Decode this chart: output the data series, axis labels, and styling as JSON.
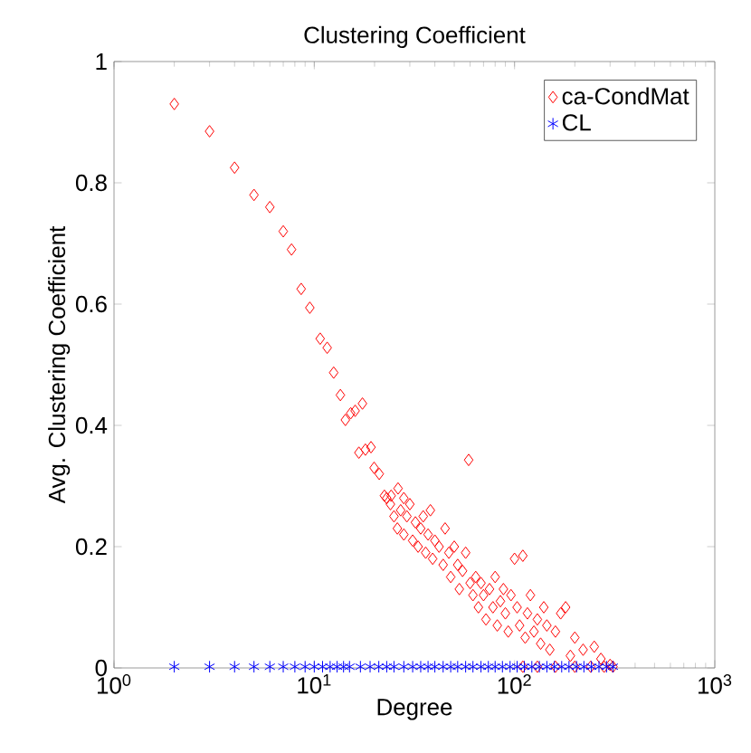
{
  "chart_data": {
    "type": "scatter",
    "title": "Clustering Coefficient",
    "xlabel": "Degree",
    "ylabel": "Avg. Clustering Coefficient",
    "log": "x",
    "xlim": [
      1,
      1000
    ],
    "ylim": [
      0,
      1
    ],
    "xticks": [
      {
        "value": 1,
        "label": "10$^{0}$"
      },
      {
        "value": 10,
        "label": "10$^{1}$"
      },
      {
        "value": 100,
        "label": "10$^{2}$"
      },
      {
        "value": 1000,
        "label": "10$^{3}$"
      }
    ],
    "yticks": [
      0,
      0.2,
      0.4,
      0.6,
      0.8,
      1
    ],
    "legend": "top right",
    "grid": false,
    "series": [
      {
        "name": "ca-CondMat",
        "color": "#ff0000",
        "marker": "diamond",
        "x": [
          2,
          3,
          4,
          5,
          6,
          7,
          7.7,
          8.6,
          9.5,
          10.7,
          11.6,
          12.5,
          13.5,
          14.3,
          15.2,
          16,
          17.4,
          16.7,
          18,
          19.2,
          19.9,
          21.1,
          22.4,
          24.2,
          26.2,
          28,
          23,
          24,
          25,
          26,
          27,
          28,
          29,
          30,
          31,
          32,
          33,
          34,
          35,
          36,
          37,
          38,
          39,
          40,
          42,
          44,
          45,
          47,
          48,
          50,
          52,
          53,
          55,
          57,
          59,
          60,
          62,
          64,
          66,
          68,
          70,
          72,
          75,
          78,
          80,
          82,
          85,
          88,
          90,
          93,
          96,
          100,
          103,
          106,
          110,
          113,
          116,
          120,
          125,
          130,
          135,
          140,
          145,
          150,
          160,
          170,
          180,
          190,
          200,
          220,
          250,
          270,
          300,
          110,
          130,
          160,
          200,
          240,
          280,
          310
        ],
        "values": [
          0.93,
          0.885,
          0.825,
          0.78,
          0.76,
          0.72,
          0.69,
          0.625,
          0.594,
          0.543,
          0.528,
          0.487,
          0.45,
          0.409,
          0.42,
          0.424,
          0.436,
          0.355,
          0.36,
          0.364,
          0.33,
          0.32,
          0.284,
          0.284,
          0.296,
          0.28,
          0.28,
          0.27,
          0.25,
          0.23,
          0.26,
          0.22,
          0.25,
          0.27,
          0.21,
          0.24,
          0.2,
          0.23,
          0.25,
          0.19,
          0.22,
          0.26,
          0.18,
          0.21,
          0.2,
          0.17,
          0.23,
          0.19,
          0.15,
          0.2,
          0.17,
          0.13,
          0.16,
          0.19,
          0.343,
          0.14,
          0.12,
          0.15,
          0.1,
          0.14,
          0.12,
          0.08,
          0.13,
          0.1,
          0.15,
          0.07,
          0.11,
          0.13,
          0.09,
          0.06,
          0.12,
          0.18,
          0.1,
          0.07,
          0.185,
          0.05,
          0.09,
          0.12,
          0.06,
          0.08,
          0.04,
          0.1,
          0.07,
          0.03,
          0.06,
          0.09,
          0.1,
          0.02,
          0.05,
          0.03,
          0.035,
          0.015,
          0.005,
          0.002,
          0.002,
          0.002,
          0.002,
          0.002,
          0.002,
          0.002
        ]
      },
      {
        "name": "CL",
        "color": "#0000ff",
        "marker": "cross",
        "x": [
          2,
          3,
          4,
          5,
          6,
          7,
          8,
          9,
          10,
          11,
          12,
          13,
          14,
          15,
          17,
          19,
          21,
          23,
          25,
          28,
          31,
          34,
          37,
          40,
          44,
          48,
          52,
          57,
          62,
          68,
          74,
          80,
          87,
          95,
          103,
          112,
          122,
          133,
          145,
          158,
          172,
          187,
          204,
          222,
          242,
          264,
          288,
          310
        ],
        "values": [
          0.002,
          0.002,
          0.002,
          0.002,
          0.002,
          0.002,
          0.002,
          0.002,
          0.002,
          0.002,
          0.002,
          0.002,
          0.002,
          0.002,
          0.002,
          0.002,
          0.002,
          0.002,
          0.002,
          0.002,
          0.002,
          0.002,
          0.002,
          0.002,
          0.002,
          0.002,
          0.002,
          0.002,
          0.002,
          0.002,
          0.002,
          0.002,
          0.002,
          0.002,
          0.002,
          0.002,
          0.002,
          0.002,
          0.002,
          0.002,
          0.002,
          0.002,
          0.002,
          0.002,
          0.002,
          0.002,
          0.002,
          0.002
        ]
      }
    ]
  }
}
